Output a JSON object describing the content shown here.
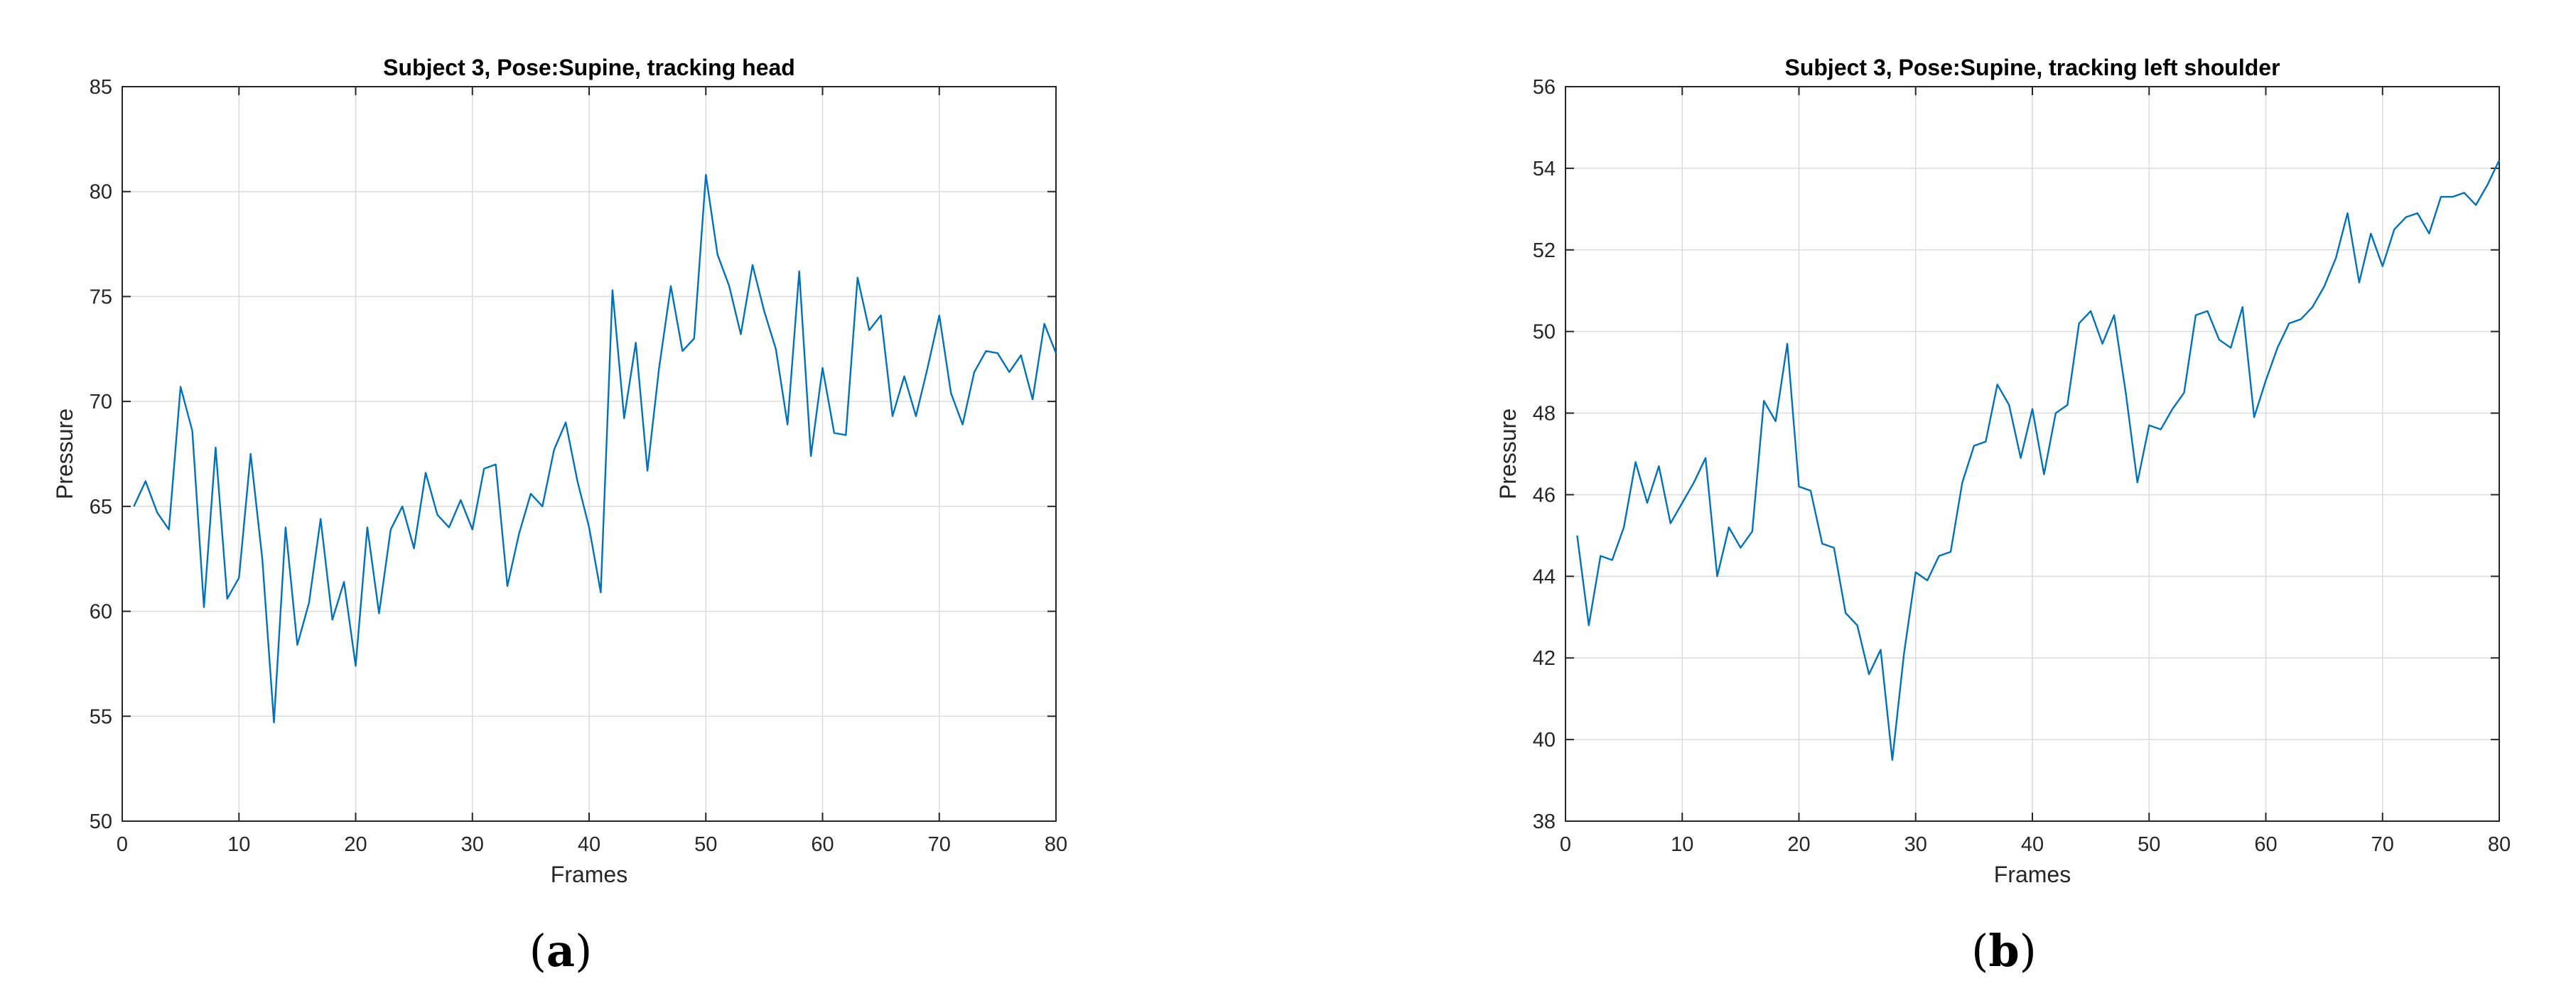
{
  "chart_data": [
    {
      "type": "line",
      "title": "Subject 3, Pose:Supine, tracking head",
      "xlabel": "Frames",
      "ylabel": "Pressure",
      "xlim": [
        0,
        80
      ],
      "ylim": [
        50,
        85
      ],
      "xticks": [
        0,
        10,
        20,
        30,
        40,
        50,
        60,
        70,
        80
      ],
      "yticks": [
        50,
        55,
        60,
        65,
        70,
        75,
        80,
        85
      ],
      "grid": true,
      "line_color": "#0072BD",
      "caption": {
        "open": "(",
        "letter": "a",
        "close": ")"
      },
      "x": [
        1,
        2,
        3,
        4,
        5,
        6,
        7,
        8,
        9,
        10,
        11,
        12,
        13,
        14,
        15,
        16,
        17,
        18,
        19,
        20,
        21,
        22,
        23,
        24,
        25,
        26,
        27,
        28,
        29,
        30,
        31,
        32,
        33,
        34,
        35,
        36,
        37,
        38,
        39,
        40,
        41,
        42,
        43,
        44,
        45,
        46,
        47,
        48,
        49,
        50,
        51,
        52,
        53,
        54,
        55,
        56,
        57,
        58,
        59,
        60,
        61,
        62,
        63,
        64,
        65,
        66,
        67,
        68,
        69,
        70,
        71,
        72,
        73,
        74,
        75,
        76,
        77,
        78,
        79,
        80
      ],
      "y": [
        65.0,
        66.2,
        64.7,
        63.9,
        70.7,
        68.6,
        60.2,
        67.8,
        60.6,
        61.6,
        67.5,
        62.5,
        54.7,
        64.0,
        58.4,
        60.4,
        64.4,
        59.6,
        61.4,
        57.4,
        64.0,
        59.9,
        63.9,
        65.0,
        63.0,
        66.6,
        64.6,
        64.0,
        65.3,
        63.9,
        66.8,
        67.0,
        61.2,
        63.7,
        65.6,
        65.0,
        67.7,
        69.0,
        66.2,
        64.0,
        60.9,
        75.3,
        69.2,
        72.8,
        66.7,
        71.6,
        75.5,
        72.4,
        73.0,
        80.8,
        77.0,
        75.5,
        73.2,
        76.5,
        74.3,
        72.5,
        68.9,
        76.2,
        67.4,
        71.6,
        68.5,
        68.4,
        75.9,
        73.4,
        74.1,
        69.3,
        71.2,
        69.3,
        71.6,
        74.1,
        70.4,
        68.9,
        71.4,
        72.4,
        72.3,
        71.4,
        72.2,
        70.1,
        73.7,
        72.3
      ]
    },
    {
      "type": "line",
      "title": "Subject 3, Pose:Supine, tracking left shoulder",
      "xlabel": "Frames",
      "ylabel": "Pressure",
      "xlim": [
        0,
        80
      ],
      "ylim": [
        38,
        56
      ],
      "xticks": [
        0,
        10,
        20,
        30,
        40,
        50,
        60,
        70,
        80
      ],
      "yticks": [
        38,
        40,
        42,
        44,
        46,
        48,
        50,
        52,
        54,
        56
      ],
      "grid": true,
      "line_color": "#0072BD",
      "caption": {
        "open": "(",
        "letter": "b",
        "close": ")"
      },
      "x": [
        1,
        2,
        3,
        4,
        5,
        6,
        7,
        8,
        9,
        10,
        11,
        12,
        13,
        14,
        15,
        16,
        17,
        18,
        19,
        20,
        21,
        22,
        23,
        24,
        25,
        26,
        27,
        28,
        29,
        30,
        31,
        32,
        33,
        34,
        35,
        36,
        37,
        38,
        39,
        40,
        41,
        42,
        43,
        44,
        45,
        46,
        47,
        48,
        49,
        50,
        51,
        52,
        53,
        54,
        55,
        56,
        57,
        58,
        59,
        60,
        61,
        62,
        63,
        64,
        65,
        66,
        67,
        68,
        69,
        70,
        71,
        72,
        73,
        74,
        75,
        76,
        77,
        78,
        79,
        80
      ],
      "y": [
        45.0,
        42.8,
        44.5,
        44.4,
        45.2,
        46.8,
        45.8,
        46.7,
        45.3,
        45.8,
        46.3,
        46.9,
        44.0,
        45.2,
        44.7,
        45.1,
        48.3,
        47.8,
        49.7,
        46.2,
        46.1,
        44.8,
        44.7,
        43.1,
        42.8,
        41.6,
        42.2,
        39.5,
        42.1,
        44.1,
        43.9,
        44.5,
        44.6,
        46.3,
        47.2,
        47.3,
        48.7,
        48.2,
        46.9,
        48.1,
        46.5,
        48.0,
        48.2,
        50.2,
        50.5,
        49.7,
        50.4,
        48.5,
        46.3,
        47.7,
        47.6,
        48.1,
        48.5,
        50.4,
        50.5,
        49.8,
        49.6,
        50.6,
        47.9,
        48.8,
        49.6,
        50.2,
        50.3,
        50.6,
        51.1,
        51.8,
        52.9,
        51.2,
        52.4,
        51.6,
        52.5,
        52.8,
        52.9,
        52.4,
        53.3,
        53.3,
        53.4,
        53.1,
        53.6,
        54.2
      ]
    }
  ]
}
